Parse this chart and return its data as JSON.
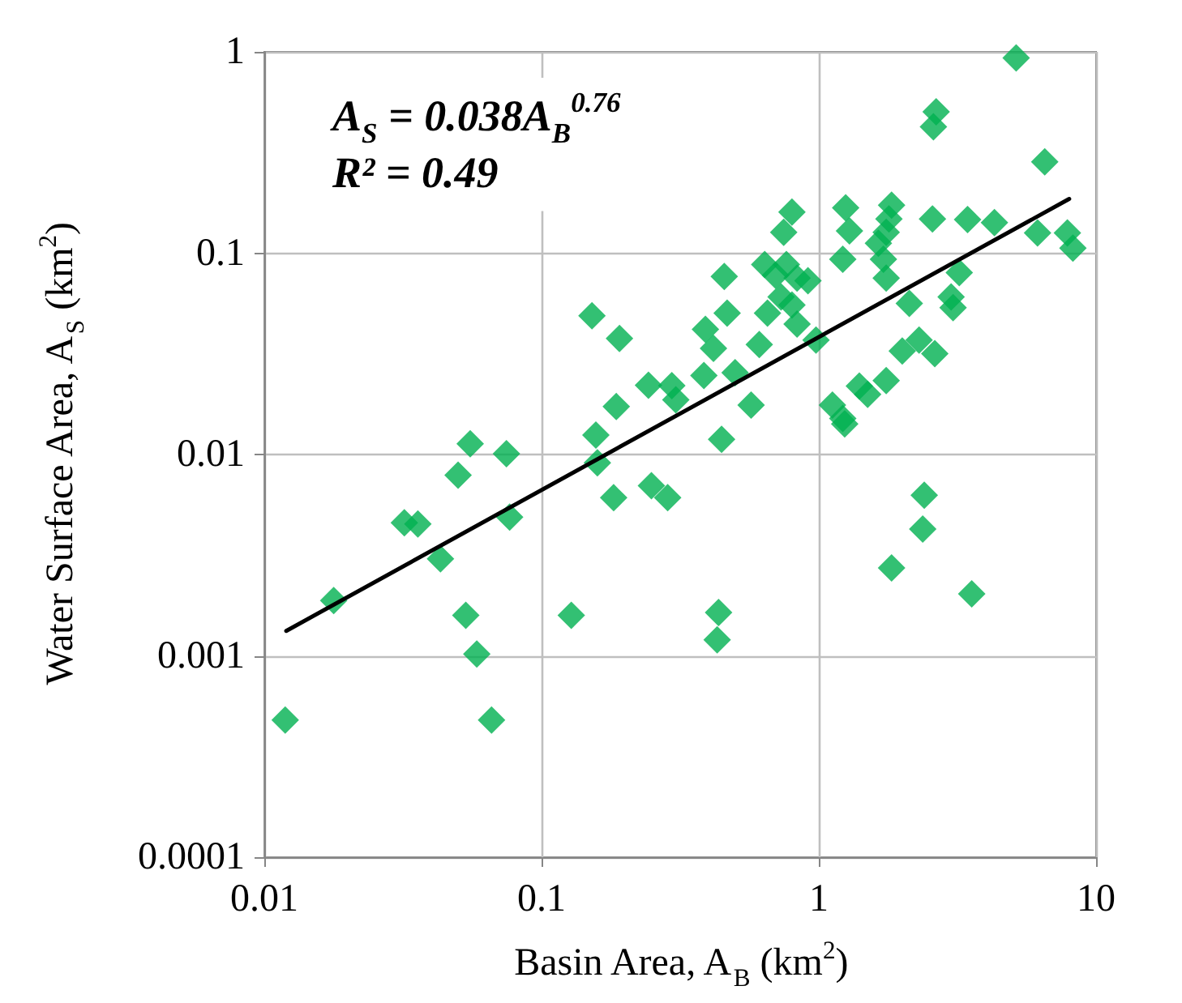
{
  "chart_data": {
    "type": "scatter",
    "xlabel": "Basin Area, A$_{B}$ (km$^{2}$)",
    "ylabel": "Water Surface Area, A$_{S}$ (km$^{2}$)",
    "annotations": [
      "A$_{S}$ = 0.038A$_{B}$$^{0.76}$",
      "R² = 0.49"
    ],
    "log": "xy",
    "xlim": [
      0.01,
      10
    ],
    "ylim": [
      0.0001,
      1
    ],
    "xticks": [
      0.01,
      0.1,
      1,
      10
    ],
    "yticks": [
      0.0001,
      0.001,
      0.01,
      0.1,
      1
    ],
    "grid": true,
    "marker": "diamond",
    "series": [
      {
        "color": "#00b050",
        "x": [
          0.0119,
          0.0178,
          0.032,
          0.0358,
          0.0432,
          0.0533,
          0.0584,
          0.066,
          0.05,
          0.0553,
          0.0747,
          0.0767,
          0.128,
          0.157,
          0.159,
          0.182,
          0.249,
          0.285,
          0.446,
          0.435,
          0.43,
          1.24,
          2.4,
          2.37,
          1.83,
          3.56,
          0.152,
          0.191,
          0.243,
          0.295,
          0.305,
          0.186,
          5.15,
          2.65,
          2.59,
          6.53,
          0.8,
          0.747,
          1.25,
          1.29,
          1.83,
          1.79,
          1.75,
          2.57,
          3.44,
          4.3,
          6.15,
          7.88,
          8.25,
          1.22,
          1.64,
          1.71,
          1.75,
          3.21,
          3.0,
          3.05,
          2.12,
          2.0,
          2.3,
          2.62,
          1.4,
          1.5,
          1.75,
          1.12,
          1.22,
          0.456,
          0.467,
          0.39,
          0.417,
          0.385,
          0.499,
          0.57,
          0.61,
          0.638,
          0.698,
          0.764,
          0.835,
          0.653,
          0.731,
          0.8,
          0.835,
          0.977,
          0.914
        ],
        "values": [
          0.00048,
          0.00188,
          0.00458,
          0.00452,
          0.00303,
          0.00159,
          0.00102,
          0.00048,
          0.0079,
          0.0113,
          0.0101,
          0.00489,
          0.00159,
          0.0125,
          0.0091,
          0.0061,
          0.007,
          0.0061,
          0.0119,
          0.00164,
          0.0012,
          0.0142,
          0.00628,
          0.00426,
          0.00273,
          0.00203,
          0.0489,
          0.0377,
          0.0221,
          0.022,
          0.0187,
          0.0173,
          0.933,
          0.504,
          0.424,
          0.284,
          0.16,
          0.127,
          0.168,
          0.129,
          0.173,
          0.148,
          0.127,
          0.148,
          0.147,
          0.142,
          0.126,
          0.126,
          0.106,
          0.0933,
          0.112,
          0.0933,
          0.0752,
          0.08,
          0.0607,
          0.0536,
          0.0563,
          0.0327,
          0.037,
          0.0317,
          0.0219,
          0.0199,
          0.0233,
          0.0176,
          0.0151,
          0.0766,
          0.0504,
          0.0419,
          0.0337,
          0.0247,
          0.0255,
          0.0176,
          0.0352,
          0.0879,
          0.0776,
          0.0879,
          0.0752,
          0.0504,
          0.0607,
          0.0553,
          0.0445,
          0.037,
          0.073
        ]
      },
      {
        "type": "line",
        "color": "#000000",
        "marker": "none",
        "x": [
          0.012,
          8
        ],
        "values": [
          0.00133,
          0.186
        ]
      }
    ]
  }
}
